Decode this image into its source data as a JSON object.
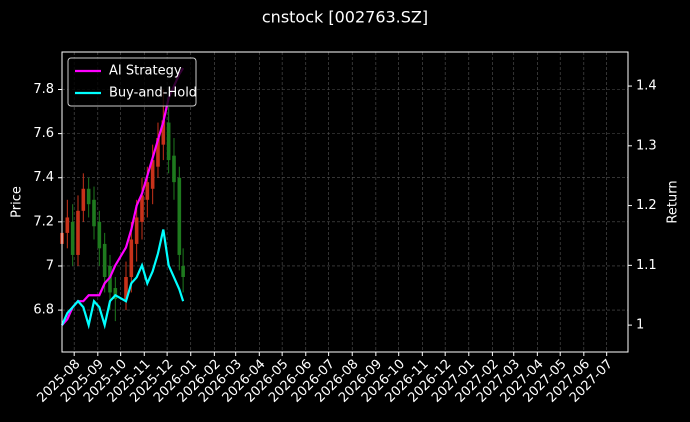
{
  "chart_data": {
    "type": "candlestick",
    "title": "cnstock [002763.SZ]",
    "ylabel": "Price",
    "y2label": "Return",
    "x": [
      "2025-07-16",
      "2025-07-23",
      "2025-07-30",
      "2025-08-06",
      "2025-08-13",
      "2025-08-20",
      "2025-08-27",
      "2025-09-03",
      "2025-09-10",
      "2025-09-17",
      "2025-09-24",
      "2025-10-08",
      "2025-10-15",
      "2025-10-22",
      "2025-10-29",
      "2025-11-05",
      "2025-11-12",
      "2025-11-19",
      "2025-11-26",
      "2025-12-03",
      "2025-12-10",
      "2025-12-17",
      "2025-12-22"
    ],
    "open": [
      7.1,
      7.15,
      7.2,
      7.05,
      7.25,
      7.35,
      7.3,
      7.2,
      7.1,
      7.0,
      6.9,
      6.85,
      6.95,
      7.1,
      7.2,
      7.3,
      7.35,
      7.45,
      7.55,
      7.65,
      7.5,
      7.4,
      7.0
    ],
    "high": [
      7.25,
      7.3,
      7.28,
      7.32,
      7.42,
      7.4,
      7.36,
      7.25,
      7.15,
      7.05,
      6.95,
      7.02,
      7.2,
      7.3,
      7.4,
      7.45,
      7.55,
      7.65,
      7.8,
      7.72,
      7.58,
      7.45,
      7.08
    ],
    "low": [
      7.02,
      7.08,
      7.0,
      7.0,
      7.2,
      7.22,
      7.12,
      7.0,
      6.88,
      6.8,
      6.75,
      6.8,
      6.88,
      7.02,
      7.12,
      7.22,
      7.28,
      7.4,
      7.48,
      7.42,
      7.3,
      6.98,
      6.88
    ],
    "close": [
      7.15,
      7.22,
      7.05,
      7.25,
      7.35,
      7.28,
      7.18,
      7.08,
      6.95,
      6.88,
      6.85,
      6.95,
      7.12,
      7.22,
      7.32,
      7.38,
      7.48,
      7.58,
      7.66,
      7.48,
      7.38,
      7.05,
      6.95
    ],
    "up_color": "#c8321a",
    "down_color": "#1e7a1e",
    "series": [
      {
        "name": "AI Strategy",
        "color": "#ff00ff",
        "axis": "y2",
        "values": [
          1.0,
          1.01,
          1.03,
          1.04,
          1.04,
          1.05,
          1.05,
          1.05,
          1.07,
          1.08,
          1.1,
          1.13,
          1.16,
          1.2,
          1.22,
          1.25,
          1.28,
          1.31,
          1.34,
          1.38,
          1.4,
          1.42,
          1.43
        ]
      },
      {
        "name": "Buy-and-Hold",
        "color": "#00ffff",
        "axis": "y2",
        "values": [
          1.0,
          1.02,
          1.03,
          1.04,
          1.03,
          1.0,
          1.04,
          1.03,
          1.0,
          1.04,
          1.05,
          1.04,
          1.07,
          1.08,
          1.1,
          1.07,
          1.09,
          1.12,
          1.16,
          1.1,
          1.08,
          1.06,
          1.04
        ]
      }
    ],
    "xlim": [
      "2025-07-16",
      "2027-07-29"
    ],
    "xticks": [
      "2025-08",
      "2025-09",
      "2025-10",
      "2025-11",
      "2025-12",
      "2026-01",
      "2026-02",
      "2026-03",
      "2026-04",
      "2026-05",
      "2026-06",
      "2026-07",
      "2026-08",
      "2026-09",
      "2026-10",
      "2026-11",
      "2026-12",
      "2027-01",
      "2027-02",
      "2027-03",
      "2027-04",
      "2027-05",
      "2027-06",
      "2027-07"
    ],
    "ylim": [
      6.61,
      7.97
    ],
    "yticks": [
      6.8,
      7.0,
      7.2,
      7.4,
      7.6,
      7.8
    ],
    "y2lim": [
      0.955,
      1.457
    ],
    "y2ticks": [
      1.0,
      1.1,
      1.2,
      1.3,
      1.4
    ],
    "grid": true,
    "legend": "upper-left"
  }
}
